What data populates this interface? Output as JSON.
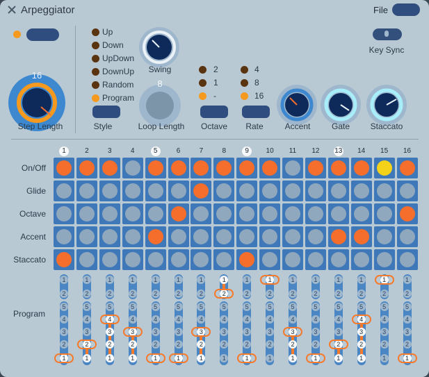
{
  "window": {
    "title": "Arpeggiator",
    "file_label": "File"
  },
  "colors": {
    "accent_orange": "#f56e2c",
    "active_yellow": "#f5d21a",
    "cell_blue": "#3e78b8",
    "knob_navy": "#0e2a5a",
    "bg": "#b9c9d3"
  },
  "top": {
    "step_length": {
      "label": "Step Length",
      "value": "16"
    },
    "style": {
      "label": "Style",
      "options": [
        "Up",
        "Down",
        "UpDown",
        "DownUp",
        "Random",
        "Program"
      ],
      "selected_index": 5
    },
    "swing": {
      "label": "Swing"
    },
    "loop_length": {
      "label": "Loop Length",
      "value": "8"
    },
    "octave": {
      "label": "Octave",
      "options": [
        "2",
        "1",
        "-"
      ],
      "selected_index": 2
    },
    "rate": {
      "label": "Rate",
      "options": [
        "4",
        "8",
        "16"
      ],
      "selected_index": 2
    },
    "accent": {
      "label": "Accent"
    },
    "gate": {
      "label": "Gate"
    },
    "staccato": {
      "label": "Staccato"
    },
    "key_sync": {
      "label": "Key Sync"
    }
  },
  "grid": {
    "columns": [
      "1",
      "2",
      "3",
      "4",
      "5",
      "6",
      "7",
      "8",
      "9",
      "10",
      "11",
      "12",
      "13",
      "14",
      "15",
      "16"
    ],
    "highlighted_columns": [
      1,
      5,
      9,
      13
    ],
    "row_labels": [
      "On/Off",
      "Glide",
      "Octave",
      "Accent",
      "Staccato"
    ],
    "rows": [
      [
        1,
        1,
        1,
        0,
        1,
        1,
        1,
        1,
        1,
        1,
        0,
        1,
        1,
        1,
        2,
        1
      ],
      [
        0,
        0,
        0,
        0,
        0,
        0,
        1,
        0,
        0,
        0,
        0,
        0,
        0,
        0,
        0,
        0
      ],
      [
        0,
        0,
        0,
        0,
        0,
        1,
        0,
        0,
        0,
        0,
        0,
        0,
        0,
        0,
        0,
        1
      ],
      [
        0,
        0,
        0,
        0,
        1,
        0,
        0,
        0,
        0,
        0,
        0,
        0,
        1,
        1,
        0,
        0
      ],
      [
        1,
        0,
        0,
        0,
        0,
        0,
        0,
        0,
        1,
        0,
        0,
        0,
        0,
        0,
        0,
        0
      ]
    ]
  },
  "program": {
    "label": "Program",
    "upper_labels": [
      "1",
      "2"
    ],
    "lower_labels": [
      "5",
      "4",
      "3",
      "2",
      "1"
    ],
    "upper_selected": [
      0,
      0,
      0,
      0,
      0,
      0,
      0,
      2,
      0,
      1,
      0,
      0,
      0,
      0,
      1,
      0
    ],
    "lower_selected": [
      1,
      2,
      4,
      3,
      1,
      1,
      3,
      0,
      1,
      0,
      3,
      1,
      2,
      4,
      0,
      1
    ]
  }
}
